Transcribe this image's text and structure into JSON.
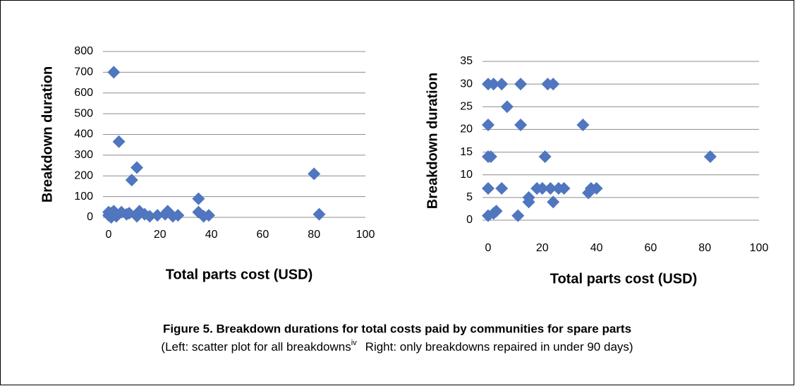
{
  "chart_data": [
    {
      "type": "scatter",
      "xlabel": "Total parts cost (USD)",
      "ylabel": "Breakdown duration",
      "x": [
        2,
        4,
        11,
        9,
        80,
        35,
        82,
        0,
        1,
        2,
        3,
        5,
        7,
        8,
        11,
        12,
        14,
        16,
        19,
        22,
        23,
        25,
        27,
        35,
        37,
        39,
        1,
        0
      ],
      "values": [
        700,
        365,
        240,
        180,
        210,
        90,
        15,
        10,
        20,
        30,
        5,
        25,
        15,
        20,
        5,
        30,
        15,
        5,
        10,
        15,
        30,
        5,
        10,
        25,
        5,
        10,
        0,
        25
      ],
      "color": "#4f76bf",
      "xlim": [
        0,
        100
      ],
      "xticks": [
        0,
        20,
        40,
        60,
        80,
        100
      ],
      "ylim": [
        0,
        800
      ],
      "yticks": [
        0,
        100,
        200,
        300,
        400,
        500,
        600,
        700,
        800
      ],
      "grid": true
    },
    {
      "type": "scatter",
      "xlabel": "Total parts cost (USD)",
      "ylabel": "Breakdown duration",
      "x": [
        0,
        2,
        5,
        12,
        22,
        24,
        7,
        0,
        12,
        35,
        0,
        1,
        21,
        82,
        0,
        5,
        18,
        20,
        23,
        26,
        28,
        37,
        38,
        40,
        15,
        15,
        24,
        3,
        2,
        0,
        11
      ],
      "values": [
        30,
        30,
        30,
        30,
        30,
        30,
        25,
        21,
        21,
        21,
        14,
        14,
        14,
        14,
        7,
        7,
        7,
        7,
        7,
        7,
        7,
        6,
        7,
        7,
        5,
        4,
        4,
        2,
        1.5,
        1,
        1
      ],
      "color": "#4f76bf",
      "xlim": [
        0,
        100
      ],
      "xticks": [
        0,
        20,
        40,
        60,
        80,
        100
      ],
      "ylim": [
        0,
        35
      ],
      "yticks": [
        0,
        5,
        10,
        15,
        20,
        25,
        30,
        35
      ],
      "grid": true
    }
  ],
  "caption": {
    "title": "Figure 5. Breakdown durations for total costs paid by communities for spare parts",
    "text_left": "(Left: scatter plot for all breakdowns",
    "superscript": "iv",
    "text_right": "Right: only breakdowns repaired in under 90 days)"
  }
}
